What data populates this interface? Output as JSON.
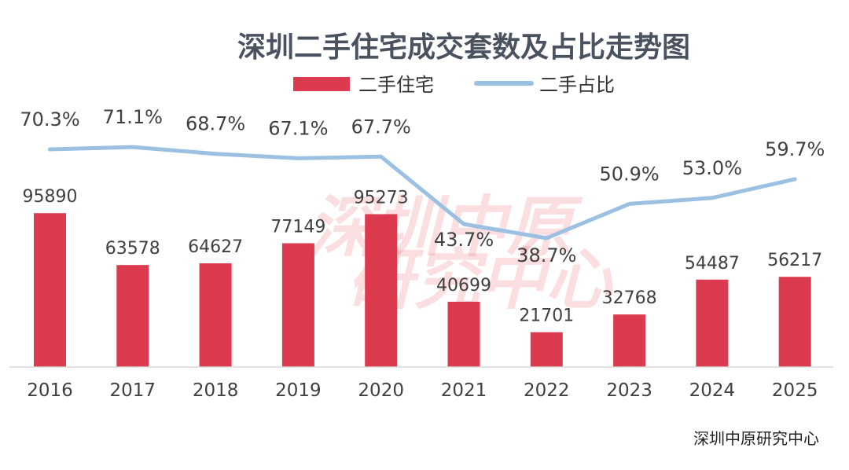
{
  "chart_data": {
    "type": "bar+line",
    "title": "深圳二手住宅成交套数及占比走势图",
    "categories": [
      "2016",
      "2017",
      "2018",
      "2019",
      "2020",
      "2021",
      "2022",
      "2023",
      "2024",
      "2025"
    ],
    "series": [
      {
        "name": "二手住宅",
        "type": "bar",
        "color": "#dc3a4f",
        "values": [
          95890,
          63578,
          64627,
          77149,
          95273,
          40699,
          21701,
          32768,
          54487,
          56217
        ],
        "labels": [
          "95890",
          "63578",
          "64627",
          "77149",
          "95273",
          "40699",
          "21701",
          "32768",
          "54487",
          "56217"
        ]
      },
      {
        "name": "二手占比",
        "type": "line",
        "color": "#9cc0e2",
        "values": [
          70.3,
          71.1,
          68.7,
          67.1,
          67.7,
          43.7,
          38.7,
          50.9,
          53.0,
          59.7
        ],
        "labels": [
          "70.3%",
          "71.1%",
          "68.7%",
          "67.1%",
          "67.7%",
          "43.7%",
          "38.7%",
          "50.9%",
          "53.0%",
          "59.7%"
        ]
      }
    ],
    "legend_position": "top-center",
    "source": "深圳中原研究中心",
    "watermark": [
      "深圳中原",
      "研究中心"
    ]
  }
}
